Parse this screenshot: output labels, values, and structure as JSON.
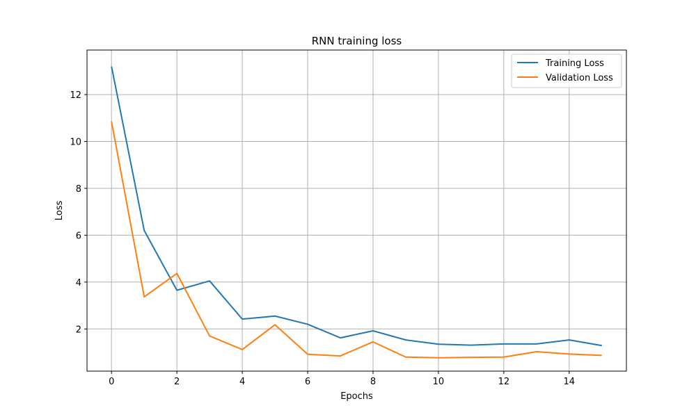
{
  "chart_data": {
    "type": "line",
    "title": "RNN training loss",
    "xlabel": "Epochs",
    "ylabel": "Loss",
    "xlim": [
      -0.75,
      15.75
    ],
    "ylim": [
      0.2,
      13.9
    ],
    "xticks": [
      0,
      2,
      4,
      6,
      8,
      10,
      12,
      14
    ],
    "yticks": [
      2,
      4,
      6,
      8,
      10,
      12
    ],
    "grid": true,
    "legend_position": "top-right",
    "x": [
      0,
      1,
      2,
      3,
      4,
      5,
      6,
      7,
      8,
      9,
      10,
      11,
      12,
      13,
      14,
      15
    ],
    "series": [
      {
        "name": "Training Loss",
        "color": "#1f77b4",
        "values": [
          13.2,
          6.2,
          3.65,
          4.05,
          2.42,
          2.55,
          2.2,
          1.62,
          1.92,
          1.53,
          1.35,
          1.31,
          1.36,
          1.36,
          1.53,
          1.29
        ]
      },
      {
        "name": "Validation Loss",
        "color": "#ff7f0e",
        "values": [
          10.85,
          3.37,
          4.37,
          1.7,
          1.12,
          2.18,
          0.92,
          0.85,
          1.45,
          0.8,
          0.77,
          0.79,
          0.8,
          1.03,
          0.93,
          0.87
        ]
      }
    ]
  }
}
